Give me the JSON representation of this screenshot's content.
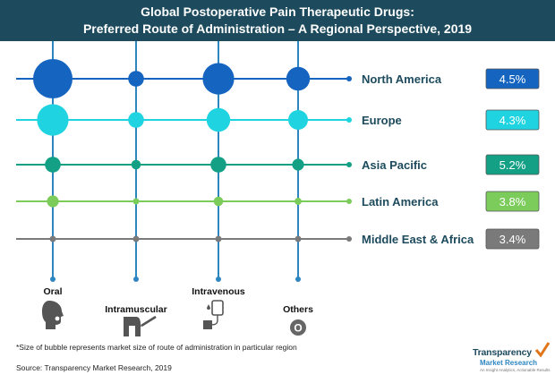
{
  "header": {
    "title_line1": "Global Postoperative Pain Therapeutic Drugs:",
    "title_line2": "Preferred Route of Administration – A Regional Perspective, 2019"
  },
  "chart_data": {
    "type": "bubble-matrix",
    "title": "Global Postoperative Pain Therapeutic Drugs: Preferred Route of Administration – A Regional Perspective, 2019",
    "columns": [
      "Oral",
      "Intramuscular",
      "Intravenous",
      "Others"
    ],
    "column_icons": [
      "head-profile-icon",
      "injection-arm-icon",
      "iv-drip-icon",
      "circle-o-icon"
    ],
    "others_icon_glyph": "O",
    "rows": [
      {
        "region": "North America",
        "value_label": "4.5%",
        "color": "#1565c0",
        "bubble_sizes": [
          5,
          2,
          4,
          3
        ]
      },
      {
        "region": "Europe",
        "value_label": "4.3%",
        "color": "#1fd3e0",
        "bubble_sizes": [
          4,
          2,
          3,
          2.5
        ]
      },
      {
        "region": "Asia Pacific",
        "value_label": "5.2%",
        "color": "#14a085",
        "bubble_sizes": [
          2,
          1.2,
          2,
          1.5
        ]
      },
      {
        "region": "Latin America",
        "value_label": "3.8%",
        "color": "#7ccc5c",
        "bubble_sizes": [
          1.5,
          0.7,
          1.2,
          0.9
        ]
      },
      {
        "region": "Middle East & Africa",
        "value_label": "3.4%",
        "color": "#7a7a7a",
        "bubble_sizes": [
          0.6,
          0.5,
          0.6,
          0.5
        ]
      }
    ],
    "column_line_color": "#2e86c1",
    "note": "bubble size represents relative market size"
  },
  "footnote": "*Size of bubble represents market size of route of administration in particular region",
  "source": "Source: Transparency Market Research, 2019",
  "logo": {
    "name": "Transparency",
    "sub": "Market Research",
    "tagline": "An Insight Analytics, Actionable Results"
  }
}
